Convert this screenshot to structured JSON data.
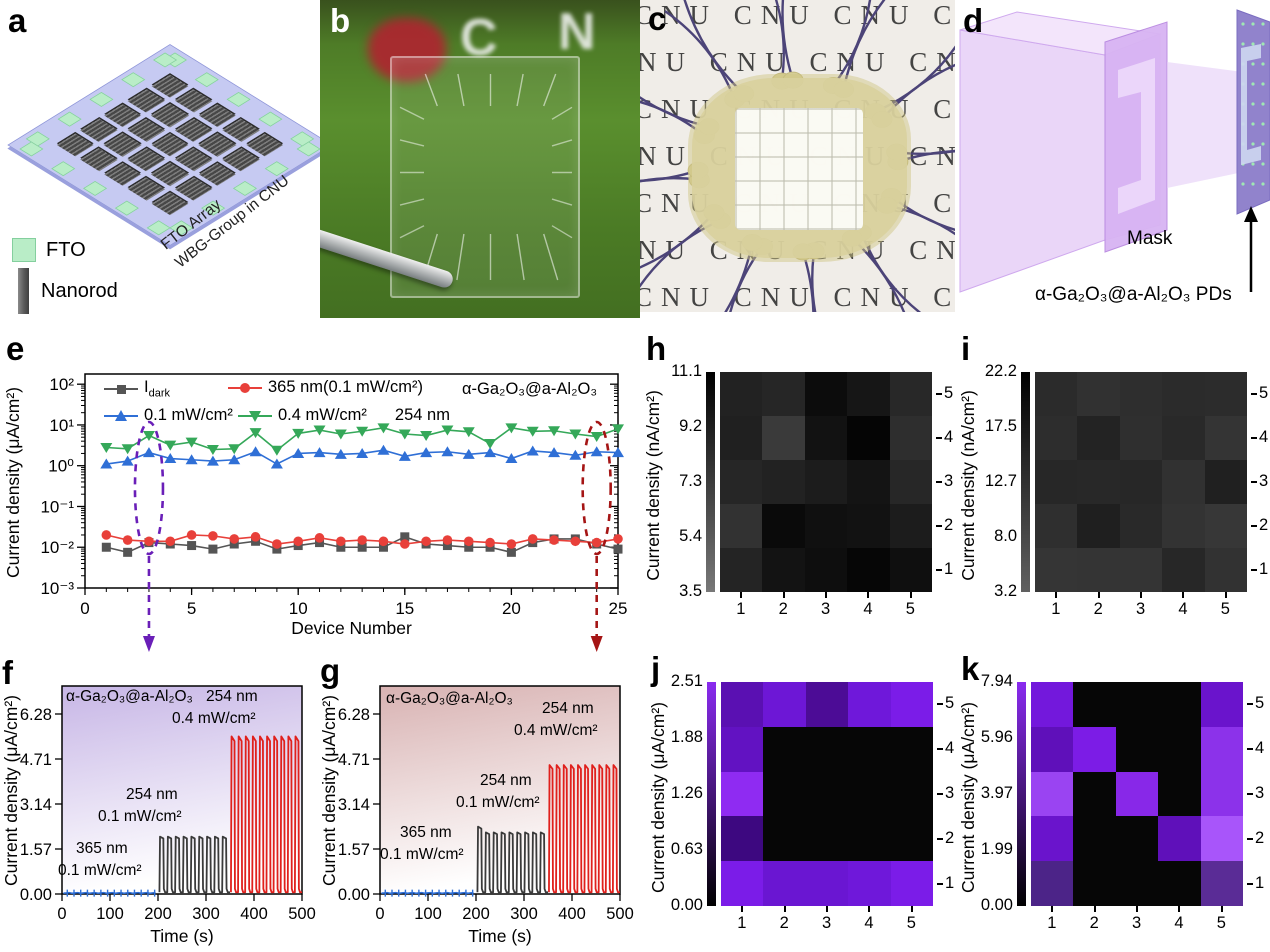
{
  "panels": {
    "a": {
      "label": "a",
      "chip_text": [
        "FTO Array",
        "WBG-Group in CNU"
      ],
      "legend": [
        {
          "name": "fto-swatch",
          "label": "FTO"
        },
        {
          "name": "nanorod-swatch",
          "label": "Nanorod"
        }
      ]
    },
    "b": {
      "label": "b",
      "letters": [
        "C",
        "N"
      ]
    },
    "c": {
      "label": "c",
      "watermark_word": "CNU"
    },
    "d": {
      "label": "d",
      "mask_label": "Mask",
      "device_label": "α-Ga₂O₃@a-Al₂O₃ PDs"
    },
    "e": {
      "label": "e"
    },
    "f": {
      "label": "f"
    },
    "g": {
      "label": "g"
    },
    "h": {
      "label": "h"
    },
    "i": {
      "label": "i"
    },
    "j": {
      "label": "j"
    },
    "k": {
      "label": "k"
    }
  },
  "chart_data": [
    {
      "id": "e",
      "type": "line",
      "y_scale": "log",
      "xlabel": "Device Number",
      "ylabel": "Current density (μA/cm²)",
      "x_range": [
        0,
        25
      ],
      "y_range": [
        0.001,
        178
      ],
      "x_ticks": [
        0,
        5,
        10,
        15,
        20,
        25
      ],
      "y_tick_labels": [
        "10²",
        "10¹",
        "10⁰",
        "10⁻¹",
        "10⁻²",
        "10⁻³"
      ],
      "y_tick_values": [
        100,
        10,
        1,
        0.1,
        0.01,
        0.001
      ],
      "corner_label": "α-Ga₂O₃@a-Al₂O₃",
      "extra_label": "254 nm",
      "series": [
        {
          "name": "I_dark",
          "name_main": "I",
          "name_sub": "dark",
          "marker": "square",
          "color": "#555555",
          "values": [
            0.01,
            0.0075,
            0.013,
            0.012,
            0.011,
            0.009,
            0.012,
            0.014,
            0.009,
            0.011,
            0.013,
            0.01,
            0.01,
            0.01,
            0.018,
            0.012,
            0.011,
            0.01,
            0.01,
            0.0075,
            0.013,
            0.016,
            0.016,
            0.012,
            0.009
          ]
        },
        {
          "name": "365 nm(0.1 mW/cm²)",
          "marker": "circle",
          "color": "#e8403a",
          "values": [
            0.02,
            0.015,
            0.014,
            0.014,
            0.02,
            0.019,
            0.016,
            0.018,
            0.012,
            0.014,
            0.017,
            0.014,
            0.015,
            0.014,
            0.012,
            0.014,
            0.015,
            0.014,
            0.013,
            0.012,
            0.016,
            0.015,
            0.014,
            0.013,
            0.016
          ]
        },
        {
          "name": "0.1 mW/cm²",
          "marker": "triangle-up",
          "color": "#2f6fd6",
          "values": [
            1.1,
            1.3,
            2.1,
            1.5,
            1.4,
            1.3,
            1.4,
            2.2,
            1.1,
            2.0,
            2.1,
            1.9,
            2.0,
            2.4,
            1.7,
            2.1,
            2.2,
            1.9,
            2.1,
            1.5,
            2.3,
            2.1,
            1.8,
            2.2,
            2.1
          ]
        },
        {
          "name": "0.4 mW/cm²",
          "marker": "triangle-down",
          "color": "#35a859",
          "values": [
            2.8,
            2.6,
            5.5,
            3.2,
            3.8,
            2.5,
            2.6,
            6.5,
            2.4,
            6.2,
            7.5,
            6.0,
            7.0,
            8.5,
            6.0,
            5.5,
            7.5,
            6.8,
            3.5,
            8.5,
            7.0,
            7.2,
            6.0,
            5.2,
            8.0
          ]
        }
      ],
      "annotations": [
        {
          "type": "dashed-ellipse-arrow",
          "color": "#6a1fb8",
          "device": 3
        },
        {
          "type": "dashed-ellipse-arrow",
          "color": "#a51515",
          "device": 24
        }
      ]
    },
    {
      "id": "f",
      "type": "pulse",
      "title": "α-Ga₂O₃@a-Al₂O₃",
      "xlabel": "Time (s)",
      "ylabel": "Current density (μA/cm²)",
      "x_ticks": [
        0,
        100,
        200,
        300,
        400,
        500
      ],
      "y_ticks": [
        "0.00",
        "1.57",
        "3.14",
        "4.71",
        "6.28"
      ],
      "y_tick_values": [
        0,
        1.57,
        3.14,
        4.71,
        6.28
      ],
      "labels": {
        "seg1": [
          "365 nm",
          "0.1 mW/cm²"
        ],
        "seg2": [
          "254 nm",
          "0.1 mW/cm²"
        ],
        "seg3": [
          "254 nm",
          "0.4 mW/cm²"
        ]
      },
      "segments": [
        {
          "type": "flat",
          "color": "#2f6fd6",
          "t0": 3,
          "t1": 198,
          "level": 0.03
        },
        {
          "type": "pulses",
          "color": "#3a3a3a",
          "t0": 203,
          "t1": 350,
          "n": 9,
          "high": 2.0,
          "low": 0.06
        },
        {
          "type": "pulses",
          "color": "#e0201c",
          "t0": 352,
          "t1": 500,
          "n": 10,
          "high": 5.5,
          "low": 0.06
        }
      ],
      "bg_top": "#c7b6e6",
      "bg_bottom": "#ffffff"
    },
    {
      "id": "g",
      "type": "pulse",
      "title": "α-Ga₂O₃@a-Al₂O₃",
      "xlabel": "Time (s)",
      "ylabel": "Current density (μA/cm²)",
      "x_ticks": [
        0,
        100,
        200,
        300,
        400,
        500
      ],
      "y_ticks": [
        "0.00",
        "1.57",
        "3.14",
        "4.71",
        "6.28"
      ],
      "y_tick_values": [
        0,
        1.57,
        3.14,
        4.71,
        6.28
      ],
      "labels": {
        "seg1": [
          "365 nm",
          "0.1 mW/cm²"
        ],
        "seg2": [
          "254 nm",
          "0.1 mW/cm²"
        ],
        "seg3": [
          "254 nm",
          "0.4 mW/cm²"
        ]
      },
      "segments": [
        {
          "type": "flat",
          "color": "#2f6fd6",
          "t0": 3,
          "t1": 198,
          "level": 0.03
        },
        {
          "type": "pulses",
          "color": "#3a3a3a",
          "t0": 203,
          "t1": 350,
          "n": 9,
          "high": 2.15,
          "high_first": 2.35,
          "low": 0.06
        },
        {
          "type": "pulses",
          "color": "#e0201c",
          "t0": 352,
          "t1": 500,
          "n": 10,
          "high": 4.5,
          "low": 0.06
        }
      ],
      "bg_top": "#d8b2b2",
      "bg_bottom": "#ffffff"
    },
    {
      "id": "h",
      "type": "heatmap",
      "ylabel": "Current density (nA/cm²)",
      "colorbar_ticks": [
        "11.1",
        "9.2",
        "7.3",
        "5.4",
        "3.5"
      ],
      "colorbar": {
        "top": "#000000",
        "bottom": "#787878"
      },
      "x_labels": [
        "1",
        "2",
        "3",
        "4",
        "5"
      ],
      "row_labels": [
        "5",
        "4",
        "3",
        "2",
        "1"
      ],
      "value_range": [
        3.5,
        11.1
      ],
      "rows_top_to_bottom": [
        [
          9.5,
          9.3,
          10.8,
          10.2,
          9.2
        ],
        [
          9.6,
          8.2,
          10.5,
          11.0,
          9.0
        ],
        [
          9.2,
          9.4,
          9.6,
          10.3,
          9.1
        ],
        [
          8.6,
          10.9,
          10.6,
          10.4,
          9.8
        ],
        [
          9.3,
          10.4,
          10.7,
          11.0,
          10.6
        ]
      ],
      "cell_colors": [
        [
          "#222222",
          "#262626",
          "#0c0c0c",
          "#161616",
          "#282828"
        ],
        [
          "#202020",
          "#3a3a3a",
          "#121212",
          "#050505",
          "#2e2e2e"
        ],
        [
          "#262626",
          "#222222",
          "#1c1c1c",
          "#141414",
          "#272727"
        ],
        [
          "#323232",
          "#0a0a0a",
          "#101010",
          "#121212",
          "#1c1c1c"
        ],
        [
          "#242424",
          "#131313",
          "#0e0e0e",
          "#060606",
          "#0f0f0f"
        ]
      ]
    },
    {
      "id": "i",
      "type": "heatmap",
      "ylabel": "Current density (nA/cm²)",
      "colorbar_ticks": [
        "22.2",
        "17.5",
        "12.7",
        "8.0",
        "3.2"
      ],
      "colorbar": {
        "top": "#000000",
        "bottom": "#606060"
      },
      "x_labels": [
        "1",
        "2",
        "3",
        "4",
        "5"
      ],
      "row_labels": [
        "5",
        "4",
        "3",
        "2",
        "1"
      ],
      "value_range": [
        3.2,
        22.2
      ],
      "rows_top_to_bottom": [
        [
          15.5,
          14.5,
          15.0,
          15.5,
          15.3
        ],
        [
          15.2,
          17.0,
          15.0,
          15.8,
          14.0
        ],
        [
          16.0,
          15.9,
          16.0,
          14.5,
          17.5
        ],
        [
          15.0,
          17.8,
          15.8,
          14.2,
          13.5
        ],
        [
          13.8,
          14.0,
          14.0,
          16.0,
          14.8
        ]
      ],
      "cell_colors": [
        [
          "#2b2b2b",
          "#313131",
          "#2e2e2e",
          "#2b2b2b",
          "#2c2c2c"
        ],
        [
          "#2d2d2d",
          "#232323",
          "#2f2f2f",
          "#292929",
          "#343434"
        ],
        [
          "#272727",
          "#282828",
          "#272727",
          "#313131",
          "#202020"
        ],
        [
          "#2f2f2f",
          "#1f1f1f",
          "#292929",
          "#333333",
          "#373737"
        ],
        [
          "#353535",
          "#343434",
          "#343434",
          "#272727",
          "#323232"
        ]
      ]
    },
    {
      "id": "j",
      "type": "heatmap",
      "ylabel": "Current density (μA/cm²)",
      "colorbar_ticks": [
        "2.51",
        "1.88",
        "1.26",
        "0.63",
        "0.00"
      ],
      "colorbar": {
        "top": "#8a2bf0",
        "bottom": "#000000"
      },
      "x_labels": [
        "1",
        "2",
        "3",
        "4",
        "5"
      ],
      "row_labels": [
        "5",
        "4",
        "3",
        "2",
        "1"
      ],
      "value_range": [
        0,
        2.51
      ],
      "pattern": "C",
      "rows_top_to_bottom": [
        [
          1.55,
          1.95,
          1.3,
          2.0,
          2.2
        ],
        [
          1.7,
          0,
          0,
          0,
          0
        ],
        [
          2.45,
          0,
          0,
          0,
          0
        ],
        [
          1.05,
          0,
          0,
          0,
          0
        ],
        [
          2.2,
          1.85,
          1.85,
          1.95,
          2.2
        ]
      ],
      "cell_colors": [
        [
          "#5a10b2",
          "#6d17d6",
          "#4c0c96",
          "#6f18da",
          "#7b1ce8"
        ],
        [
          "#6212c2",
          "#060606",
          "#060606",
          "#060606",
          "#060606"
        ],
        [
          "#8f2bf2",
          "#060606",
          "#060606",
          "#060606",
          "#060606"
        ],
        [
          "#3d0880",
          "#060606",
          "#060606",
          "#060606",
          "#060606"
        ],
        [
          "#7b1ce8",
          "#6a16d2",
          "#6a16d2",
          "#6f18da",
          "#7b1ce8"
        ]
      ]
    },
    {
      "id": "k",
      "type": "heatmap",
      "ylabel": "Current density (μA/cm²)",
      "colorbar_ticks": [
        "7.94",
        "5.96",
        "3.97",
        "1.99",
        "0.00"
      ],
      "colorbar": {
        "top": "#8a2bf0",
        "bottom": "#000000"
      },
      "x_labels": [
        "1",
        "2",
        "3",
        "4",
        "5"
      ],
      "row_labels": [
        "5",
        "4",
        "3",
        "2",
        "1"
      ],
      "value_range": [
        0,
        7.94
      ],
      "pattern": "N",
      "rows_top_to_bottom": [
        [
          6.3,
          0,
          0,
          0,
          5.8
        ],
        [
          5.2,
          6.8,
          0,
          0,
          7.0
        ],
        [
          7.5,
          0,
          6.6,
          0,
          7.0
        ],
        [
          5.8,
          0,
          0,
          5.2,
          7.6
        ],
        [
          3.4,
          0,
          0,
          0,
          3.9
        ]
      ],
      "cell_colors": [
        [
          "#7318dc",
          "#060606",
          "#060606",
          "#060606",
          "#6a14cc"
        ],
        [
          "#5f10ba",
          "#7c1ce6",
          "#060606",
          "#060606",
          "#8c32ea"
        ],
        [
          "#9a44f2",
          "#060606",
          "#8828e8",
          "#060606",
          "#8c32ea"
        ],
        [
          "#6a14cc",
          "#060606",
          "#060606",
          "#5f10ba",
          "#a855fa"
        ],
        [
          "#4c2488",
          "#060606",
          "#060606",
          "#060606",
          "#5a2c96"
        ]
      ]
    }
  ]
}
